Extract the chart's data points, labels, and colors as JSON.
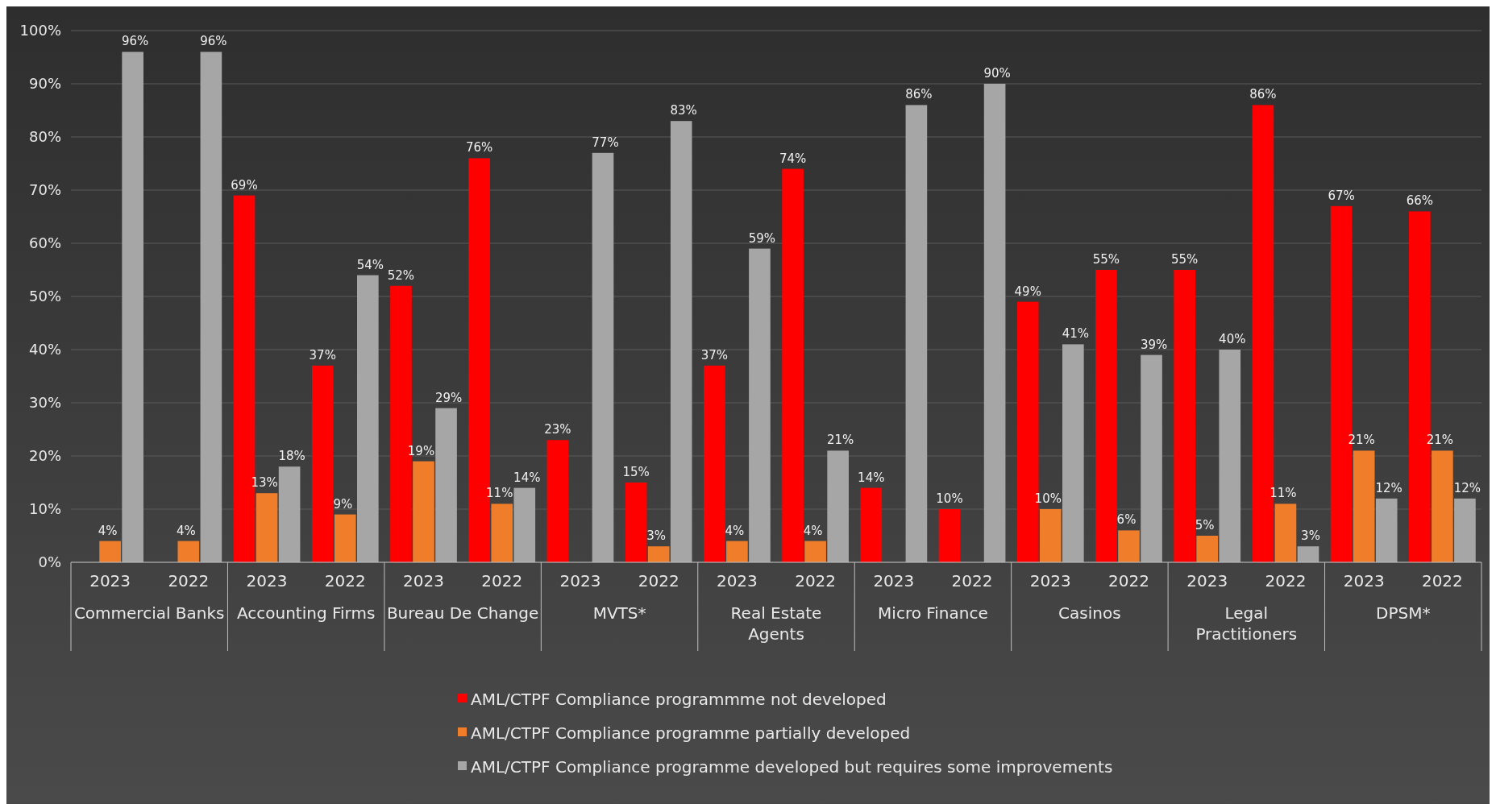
{
  "chart_data": {
    "type": "bar",
    "categories": [
      "2023",
      "2022",
      "2023",
      "2022",
      "2023",
      "2022",
      "2023",
      "2022",
      "2023",
      "2022",
      "2023",
      "2022",
      "2023",
      "2022",
      "2023",
      "2022",
      "2023",
      "2022"
    ],
    "annotations": [
      "Commercial Banks",
      "Accounting Firms",
      "Bureau De Change",
      "MVTS*",
      "Real Estate Agents",
      "Micro Finance",
      "Casinos",
      "Legal Practitioners",
      "DPSM*"
    ],
    "series": [
      {
        "name": "AML/CTPF Compliance programmme not developed",
        "color": "#ff0000",
        "values": [
          null,
          null,
          69,
          37,
          52,
          76,
          23,
          15,
          37,
          74,
          14,
          10,
          49,
          55,
          55,
          86,
          67,
          66
        ],
        "value_labels": [
          null,
          null,
          "69%",
          "37%",
          "52%",
          "76%",
          "23%",
          "15%",
          "37%",
          "74%",
          "14%",
          "10%",
          "49%",
          "55%",
          "55%",
          "86%",
          "67%",
          "66%"
        ]
      },
      {
        "name": "AML/CTPF Compliance programme partially developed",
        "color": "#ef7d2a",
        "values": [
          4,
          4,
          13,
          9,
          19,
          11,
          null,
          3,
          4,
          4,
          null,
          null,
          10,
          6,
          5,
          11,
          21,
          21
        ],
        "value_labels": [
          "4%",
          "4%",
          "13%",
          "9%",
          "19%",
          "11%",
          null,
          "3%",
          "4%",
          "4%",
          null,
          null,
          "10%",
          "6%",
          "5%",
          "11%",
          "21%",
          "21%"
        ]
      },
      {
        "name": "AML/CTPF Compliance programme developed but requires some improvements",
        "color": "#a6a6a6",
        "values": [
          96,
          96,
          18,
          54,
          29,
          14,
          77,
          83,
          59,
          21,
          86,
          90,
          41,
          39,
          40,
          3,
          12,
          12
        ],
        "value_labels": [
          "96%",
          "96%",
          "18%",
          "54%",
          "29%",
          "14%",
          "77%",
          "83%",
          "59%",
          "21%",
          "86%",
          "90%",
          "41%",
          "39%",
          "40%",
          "3%",
          "12%",
          "12%"
        ]
      }
    ],
    "ylim": [
      0,
      100
    ],
    "yticks": [
      {
        "value": 0,
        "label": "0%"
      },
      {
        "value": 10,
        "label": "10%"
      },
      {
        "value": 20,
        "label": "20%"
      },
      {
        "value": 30,
        "label": "30%"
      },
      {
        "value": 40,
        "label": "40%"
      },
      {
        "value": 50,
        "label": "50%"
      },
      {
        "value": 60,
        "label": "60%"
      },
      {
        "value": 70,
        "label": "70%"
      },
      {
        "value": 80,
        "label": "80%"
      },
      {
        "value": 90,
        "label": "90%"
      },
      {
        "value": 100,
        "label": "100%"
      }
    ],
    "grid": "y",
    "legend": "bottom"
  }
}
